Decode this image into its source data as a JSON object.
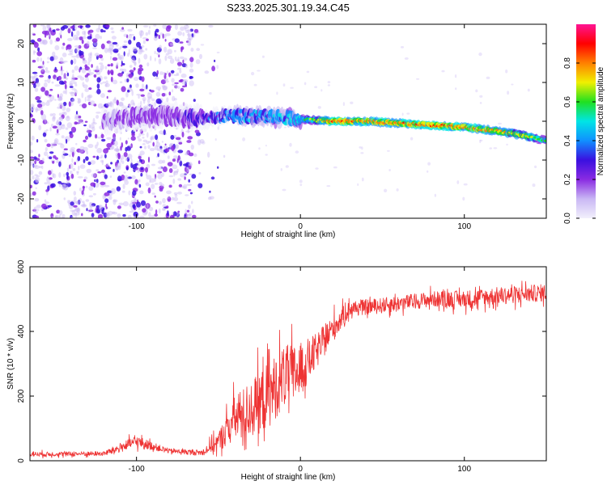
{
  "title": "S233.2025.301.19.34.C45",
  "colors": {
    "line": "#ee3333",
    "colormap": [
      "#f2f0fc",
      "#c9b7f4",
      "#8a2be2",
      "#3a10e0",
      "#1090ff",
      "#00e5e5",
      "#20e020",
      "#f0f000",
      "#ff8000",
      "#ff0000",
      "#ff1493"
    ]
  },
  "chart_data": [
    {
      "type": "heatmap",
      "name": "spectrogram",
      "xlabel": "Height of straight line (km)",
      "ylabel": "Frequency (Hz)",
      "xlim": [
        -165,
        150
      ],
      "ylim": [
        -25,
        25
      ],
      "x_ticks": [
        -100,
        0,
        100
      ],
      "y_ticks": [
        -20,
        -10,
        0,
        10,
        20
      ],
      "colorbar": {
        "label": "Normalized spectral amplitude",
        "range": [
          0,
          1
        ],
        "ticks": [
          0.0,
          0.2,
          0.4,
          0.6,
          0.8
        ]
      },
      "ridge": {
        "x": [
          -120,
          -100,
          -80,
          -60,
          -40,
          -20,
          0,
          20,
          40,
          60,
          80,
          100,
          120,
          140,
          150
        ],
        "frequency": [
          0,
          1,
          1.5,
          0.5,
          1.5,
          1,
          0.5,
          0,
          0,
          -0.5,
          -1,
          -1.5,
          -2.5,
          -4,
          -5
        ],
        "amplitude": [
          0.15,
          0.2,
          0.2,
          0.3,
          0.4,
          0.45,
          0.5,
          0.85,
          0.8,
          0.8,
          0.85,
          0.8,
          0.75,
          0.7,
          0.55
        ]
      }
    },
    {
      "type": "line",
      "name": "snr",
      "xlabel": "Height of straight line (km)",
      "ylabel": "SNR (10 * v/v)",
      "xlim": [
        -165,
        150
      ],
      "ylim": [
        0,
        600
      ],
      "x_ticks": [
        -100,
        0,
        100
      ],
      "y_ticks": [
        0,
        200,
        400,
        600
      ],
      "envelope": {
        "x": [
          -165,
          -120,
          -110,
          -100,
          -90,
          -80,
          -60,
          -50,
          -40,
          -30,
          -20,
          -10,
          0,
          10,
          20,
          30,
          50,
          80,
          100,
          120,
          150
        ],
        "mean": [
          20,
          22,
          40,
          60,
          45,
          30,
          25,
          60,
          130,
          160,
          200,
          260,
          280,
          340,
          410,
          470,
          480,
          500,
          500,
          510,
          520
        ],
        "spread": [
          12,
          12,
          25,
          30,
          20,
          12,
          15,
          50,
          120,
          150,
          170,
          160,
          140,
          90,
          70,
          40,
          40,
          40,
          45,
          45,
          45
        ]
      }
    }
  ]
}
